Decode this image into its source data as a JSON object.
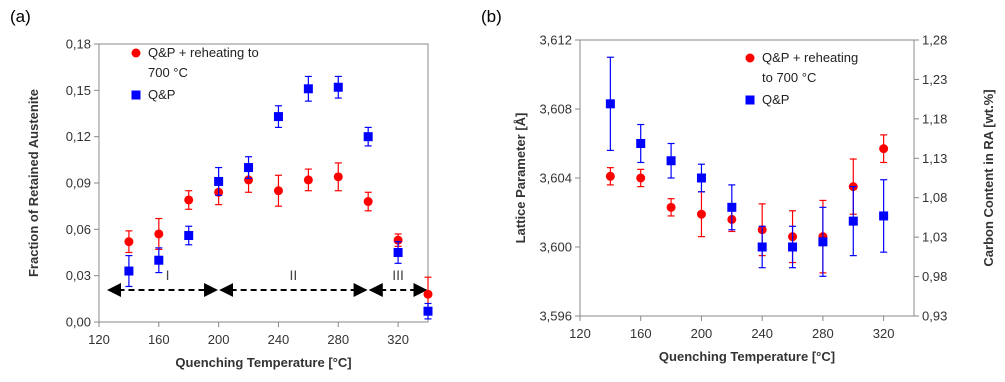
{
  "chart_data": [
    {
      "type": "scatter",
      "panel_label": "(a)",
      "xlabel": "Quenching Temperature [°C]",
      "ylabel": "Fraction of Retained Austenite",
      "xlim": [
        120,
        340
      ],
      "ylim": [
        0,
        0.18
      ],
      "x_ticks": [
        "120",
        "160",
        "200",
        "240",
        "280",
        "320"
      ],
      "y_ticks": [
        "0,00",
        "0,03",
        "0,06",
        "0,09",
        "0,12",
        "0,15",
        "0,18"
      ],
      "legend_placement": "top-left",
      "legend": [
        {
          "name_lines": [
            "Q&P + reheating to",
            "700 °C"
          ],
          "color": "#ff0000",
          "marker": "circle"
        },
        {
          "name_lines": [
            "Q&P"
          ],
          "color": "#0000ff",
          "marker": "square"
        }
      ],
      "regions": [
        {
          "label": "I",
          "x_start": 125,
          "x_end": 200
        },
        {
          "label": "II",
          "x_start": 200,
          "x_end": 300
        },
        {
          "label": "III",
          "x_start": 300,
          "x_end": 340
        }
      ],
      "series": [
        {
          "name": "Q&P + reheating to 700 °C",
          "color": "#ff0000",
          "marker": "circle",
          "points": [
            {
              "x": 140,
              "y": 0.052,
              "err": 0.007
            },
            {
              "x": 160,
              "y": 0.057,
              "err": 0.01
            },
            {
              "x": 180,
              "y": 0.079,
              "err": 0.006
            },
            {
              "x": 200,
              "y": 0.084,
              "err": 0.008
            },
            {
              "x": 220,
              "y": 0.092,
              "err": 0.008
            },
            {
              "x": 240,
              "y": 0.085,
              "err": 0.01
            },
            {
              "x": 260,
              "y": 0.092,
              "err": 0.007
            },
            {
              "x": 280,
              "y": 0.094,
              "err": 0.009
            },
            {
              "x": 300,
              "y": 0.078,
              "err": 0.006
            },
            {
              "x": 320,
              "y": 0.053,
              "err": 0.004
            },
            {
              "x": 340,
              "y": 0.018,
              "err": 0.011
            }
          ]
        },
        {
          "name": "Q&P",
          "color": "#0000ff",
          "marker": "square",
          "points": [
            {
              "x": 140,
              "y": 0.033,
              "err": 0.01
            },
            {
              "x": 160,
              "y": 0.04,
              "err": 0.008
            },
            {
              "x": 180,
              "y": 0.056,
              "err": 0.006
            },
            {
              "x": 200,
              "y": 0.091,
              "err": 0.009
            },
            {
              "x": 220,
              "y": 0.1,
              "err": 0.007
            },
            {
              "x": 240,
              "y": 0.133,
              "err": 0.007
            },
            {
              "x": 260,
              "y": 0.151,
              "err": 0.008
            },
            {
              "x": 280,
              "y": 0.152,
              "err": 0.007
            },
            {
              "x": 300,
              "y": 0.12,
              "err": 0.006
            },
            {
              "x": 320,
              "y": 0.045,
              "err": 0.007
            },
            {
              "x": 340,
              "y": 0.007,
              "err": 0.005
            }
          ]
        }
      ]
    },
    {
      "type": "scatter",
      "panel_label": "(b)",
      "xlabel": "Quenching Temperature [°C]",
      "ylabel": "Lattice Parameter [Å]",
      "y2label": "Carbon Content in RA [wt.%]",
      "xlim": [
        120,
        340
      ],
      "ylim": [
        3.596,
        3.612
      ],
      "y2lim": [
        0.93,
        1.28
      ],
      "x_ticks": [
        "120",
        "160",
        "200",
        "240",
        "280",
        "320"
      ],
      "y_ticks": [
        "3,596",
        "3,600",
        "3,604",
        "3,608",
        "3,612"
      ],
      "y2_ticks": [
        "0,93",
        "0,98",
        "1,03",
        "1,08",
        "1,13",
        "1,18",
        "1,23",
        "1,28"
      ],
      "legend_placement": "top-right",
      "legend": [
        {
          "name_lines": [
            "Q&P + reheating",
            "to 700 °C"
          ],
          "color": "#ff0000",
          "marker": "circle"
        },
        {
          "name_lines": [
            "Q&P"
          ],
          "color": "#0000ff",
          "marker": "square"
        }
      ],
      "series": [
        {
          "name": "Q&P + reheating to 700 °C",
          "color": "#ff0000",
          "marker": "circle",
          "points": [
            {
              "x": 140,
              "y": 3.6041,
              "err": 0.0005
            },
            {
              "x": 160,
              "y": 3.604,
              "err": 0.0005
            },
            {
              "x": 180,
              "y": 3.6023,
              "err": 0.0005
            },
            {
              "x": 200,
              "y": 3.6019,
              "err": 0.0013
            },
            {
              "x": 220,
              "y": 3.6016,
              "err": 0.0007
            },
            {
              "x": 240,
              "y": 3.601,
              "err": 0.0015
            },
            {
              "x": 260,
              "y": 3.6006,
              "err": 0.0015
            },
            {
              "x": 280,
              "y": 3.6006,
              "err": 0.0021
            },
            {
              "x": 300,
              "y": 3.6035,
              "err": 0.0016
            },
            {
              "x": 320,
              "y": 3.6057,
              "err": 0.0008
            }
          ]
        },
        {
          "name": "Q&P",
          "color": "#0000ff",
          "marker": "square",
          "points": [
            {
              "x": 140,
              "y": 3.6083,
              "err": 0.0027
            },
            {
              "x": 160,
              "y": 3.606,
              "err": 0.0011
            },
            {
              "x": 180,
              "y": 3.605,
              "err": 0.001
            },
            {
              "x": 200,
              "y": 3.604,
              "err": 0.0008
            },
            {
              "x": 220,
              "y": 3.6023,
              "err": 0.0013
            },
            {
              "x": 240,
              "y": 3.6,
              "err": 0.0012
            },
            {
              "x": 260,
              "y": 3.6,
              "err": 0.0012
            },
            {
              "x": 280,
              "y": 3.6003,
              "err": 0.002
            },
            {
              "x": 300,
              "y": 3.6015,
              "err": 0.002
            },
            {
              "x": 320,
              "y": 3.6018,
              "err": 0.0021
            }
          ]
        }
      ]
    }
  ]
}
